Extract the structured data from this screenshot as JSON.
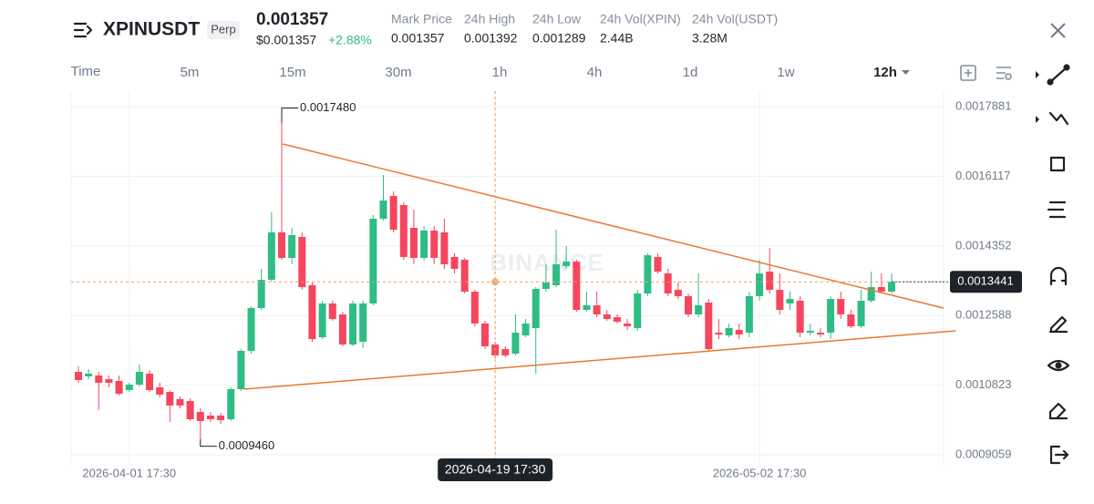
{
  "header": {
    "symbol": "XPINUSDT",
    "badge": "Perp",
    "last_price": "0.001357",
    "usd_price": "$0.001357",
    "change": "+2.88%",
    "stats": [
      {
        "label": "Mark Price",
        "value": "0.001357"
      },
      {
        "label": "24h High",
        "value": "0.001392"
      },
      {
        "label": "24h Low",
        "value": "0.001289"
      },
      {
        "label": "24h Vol(XPIN)",
        "value": "2.44B"
      },
      {
        "label": "24h Vol(USDT)",
        "value": "3.28M"
      }
    ]
  },
  "timeframes": [
    "Time",
    "5m",
    "15m",
    "30m",
    "1h",
    "4h",
    "1d",
    "1w",
    "12h"
  ],
  "chart_data": {
    "type": "candlestick",
    "watermark": "BINANCE",
    "categories": [
      null,
      null,
      null,
      null,
      null,
      "2026-04-01 17:30",
      null,
      null,
      null,
      null,
      null,
      null,
      null,
      null,
      null,
      null,
      null,
      null,
      null,
      null,
      null,
      null,
      null,
      null,
      null,
      null,
      null,
      null,
      null,
      null,
      null,
      null,
      null,
      null,
      null,
      null,
      null,
      null,
      null,
      null,
      null,
      "2026-04-19 17:30",
      null,
      null,
      null,
      null,
      null,
      null,
      null,
      null,
      null,
      null,
      null,
      null,
      null,
      null,
      null,
      null,
      null,
      null,
      null,
      null,
      null,
      null,
      null,
      null,
      null,
      "2026-05-02 17:30",
      null,
      null,
      null,
      null,
      null,
      null,
      null,
      null,
      null,
      null,
      null,
      null,
      null
    ],
    "open": [
      0.0011161,
      0.0011046,
      0.0011069,
      0.0010976,
      0.001093,
      0.0010699,
      0.0010838,
      0.0011115,
      0.0010769,
      0.0010653,
      0.0010468,
      0.0010422,
      0.0010145,
      0.0010052,
      0.0010052,
      0.000996,
      0.0010722,
      0.0011693,
      0.0012778,
      0.0013494,
      0.0014696,
      0.0014049,
      0.001458,
      0.0013356,
      0.0012039,
      0.0012894,
      0.0012617,
      0.0011854,
      0.0011924,
      0.0012894,
      0.0015042,
      0.001562,
      0.0015389,
      0.0014811,
      0.0014049,
      0.0014742,
      0.0014696,
      0.0014072,
      0.0014003,
      0.0013194,
      0.0012386,
      0.0011854,
      0.0011739,
      0.0011623,
      0.0012085,
      0.001227,
      0.0013263,
      0.0013356,
      0.0013841,
      0.0013956,
      0.0012732,
      0.0012848,
      0.0012617,
      0.0012547,
      0.0012386,
      0.001227,
      0.0013148,
      0.0014072,
      0.0013656,
      0.001324,
      0.0013079,
      0.0012617,
      0.0012917,
      0.0012155,
      0.0012085,
      0.0012224,
      0.0012155,
      0.0013079,
      0.0013702,
      0.001324,
      0.0012894,
      0.0012963,
      0.0012155,
      0.0012155,
      0.0012155,
      0.0013009,
      0.0012617,
      0.0012316,
      0.0012963,
      0.001331,
      0.0013194
    ],
    "high": [
      0.00113,
      0.0011231,
      0.0011161,
      0.0011069,
      0.0011069,
      0.0010884,
      0.0011346,
      0.0011207,
      0.0010884,
      0.0010699,
      0.0010538,
      0.0010491,
      0.0010237,
      0.0010145,
      0.0010122,
      0.0010769,
      0.0011739,
      0.0012824,
      0.0013772,
      0.0015204,
      0.001748,
      0.0014811,
      0.0014696,
      0.0013425,
      0.0012963,
      0.0012963,
      0.0012686,
      0.0012963,
      0.0012963,
      0.0015134,
      0.0016151,
      0.0015735,
      0.0015458,
      0.0015273,
      0.0014857,
      0.0014857,
      0.0015042,
      0.0014164,
      0.0014049,
      0.001324,
      0.0012455,
      0.0011924,
      0.0011808,
      0.0012617,
      0.0012501,
      0.001331,
      0.0013887,
      0.0014765,
      0.0014349,
      0.0014003,
      0.0013194,
      0.0013194,
      0.0012732,
      0.0012617,
      0.0012501,
      0.001324,
      0.0014164,
      0.0014164,
      0.0013772,
      0.0013425,
      0.0013148,
      0.0013656,
      0.0013009,
      0.0012501,
      0.0012386,
      0.0012386,
      0.0013194,
      0.0014003,
      0.0014303,
      0.0013656,
      0.0013194,
      0.0013079,
      0.0012386,
      0.001227,
      0.0013079,
      0.0013194,
      0.0012732,
      0.001324,
      0.0013702,
      0.0013656,
      0.0013656
    ],
    "low": [
      0.0010884,
      0.0010976,
      0.0010191,
      0.0010769,
      0.0010561,
      0.0010653,
      0.0010792,
      0.0010653,
      0.0010514,
      0.0009891,
      0.0010237,
      0.0009914,
      0.000946,
      0.0009891,
      0.0009845,
      0.0009914,
      0.0010676,
      0.0011623,
      0.0012732,
      0.0013448,
      0.0014003,
      0.0013887,
      0.001324,
      0.0011924,
      0.0011993,
      0.0012455,
      0.0011808,
      0.0011808,
      0.0011762,
      0.0012848,
      0.0014996,
      0.0014696,
      0.0014003,
      0.0013887,
      0.0013979,
      0.0013887,
      0.0013772,
      0.0013656,
      0.0013148,
      0.0012316,
      0.0011739,
      0.0011508,
      0.0011531,
      0.0011577,
      0.0012039,
      0.0011115,
      0.0013194,
      0.001331,
      0.0013772,
      0.0012686,
      0.0012686,
      0.0012547,
      0.0012455,
      0.0012386,
      0.0012224,
      0.0012201,
      0.0013079,
      0.0013656,
      0.0013079,
      0.0013009,
      0.0012547,
      0.0012547,
      0.0011693,
      0.0011993,
      0.0012039,
      0.0011993,
      0.0012039,
      0.0012963,
      0.0013148,
      0.0012617,
      0.0012732,
      0.0012039,
      0.0012085,
      0.0012039,
      0.0011993,
      0.0012501,
      0.001227,
      0.001227,
      0.0012917,
      0.0013148,
      0.0013148
    ],
    "close": [
      0.0010953,
      0.0011115,
      0.0010884,
      0.0010884,
      0.0010607,
      0.0010838,
      0.0011161,
      0.0010699,
      0.0010584,
      0.0010307,
      0.0010307,
      0.000996,
      0.0009914,
      0.000996,
      0.0009937,
      0.0010722,
      0.0011693,
      0.0012778,
      0.0013494,
      0.0014696,
      0.0014049,
      0.0014626,
      0.001331,
      0.0011993,
      0.0012894,
      0.0012501,
      0.0011854,
      0.0012894,
      0.0012894,
      0.0015042,
      0.0015504,
      0.0014765,
      0.0014072,
      0.0014049,
      0.0014742,
      0.0014049,
      0.0013887,
      0.0013772,
      0.0013194,
      0.0012386,
      0.0011808,
      0.0011577,
      0.0011577,
      0.0012155,
      0.0012386,
      0.0013263,
      0.0013425,
      0.0013887,
      0.0013956,
      0.0012732,
      0.0012848,
      0.0012617,
      0.0012501,
      0.0012432,
      0.0012316,
      0.0013148,
      0.0014118,
      0.0013702,
      0.0013148,
      0.0013079,
      0.0012617,
      0.0012848,
      0.0011739,
      0.0012108,
      0.001227,
      0.0012108,
      0.0013079,
      0.0013656,
      0.001324,
      0.0012732,
      0.0013009,
      0.0012155,
      0.0012201,
      0.0012108,
      0.0013009,
      0.0012617,
      0.0012316,
      0.0012963,
      0.001331,
      0.0013194,
      0.0013441
    ],
    "up_color": "#2ebd85",
    "down_color": "#f6465d",
    "max_label": "0.0017480",
    "min_label": "0.0009460",
    "trendlines": [
      {
        "color": "#e8792f",
        "x": [
          20.1,
          85.1
        ],
        "y": [
          0.0016936,
          0.0012778
        ]
      },
      {
        "color": "#e8792f",
        "x": [
          16.3,
          86.3
        ],
        "y": [
          0.0010722,
          0.0012201
        ]
      }
    ],
    "ylim": [
      0.0008805,
      0.0018276
    ],
    "yticks": [
      0.0017881,
      0.0016117,
      0.0014352,
      0.0012588,
      0.0010823,
      0.0009059
    ],
    "grid": true
  }
}
